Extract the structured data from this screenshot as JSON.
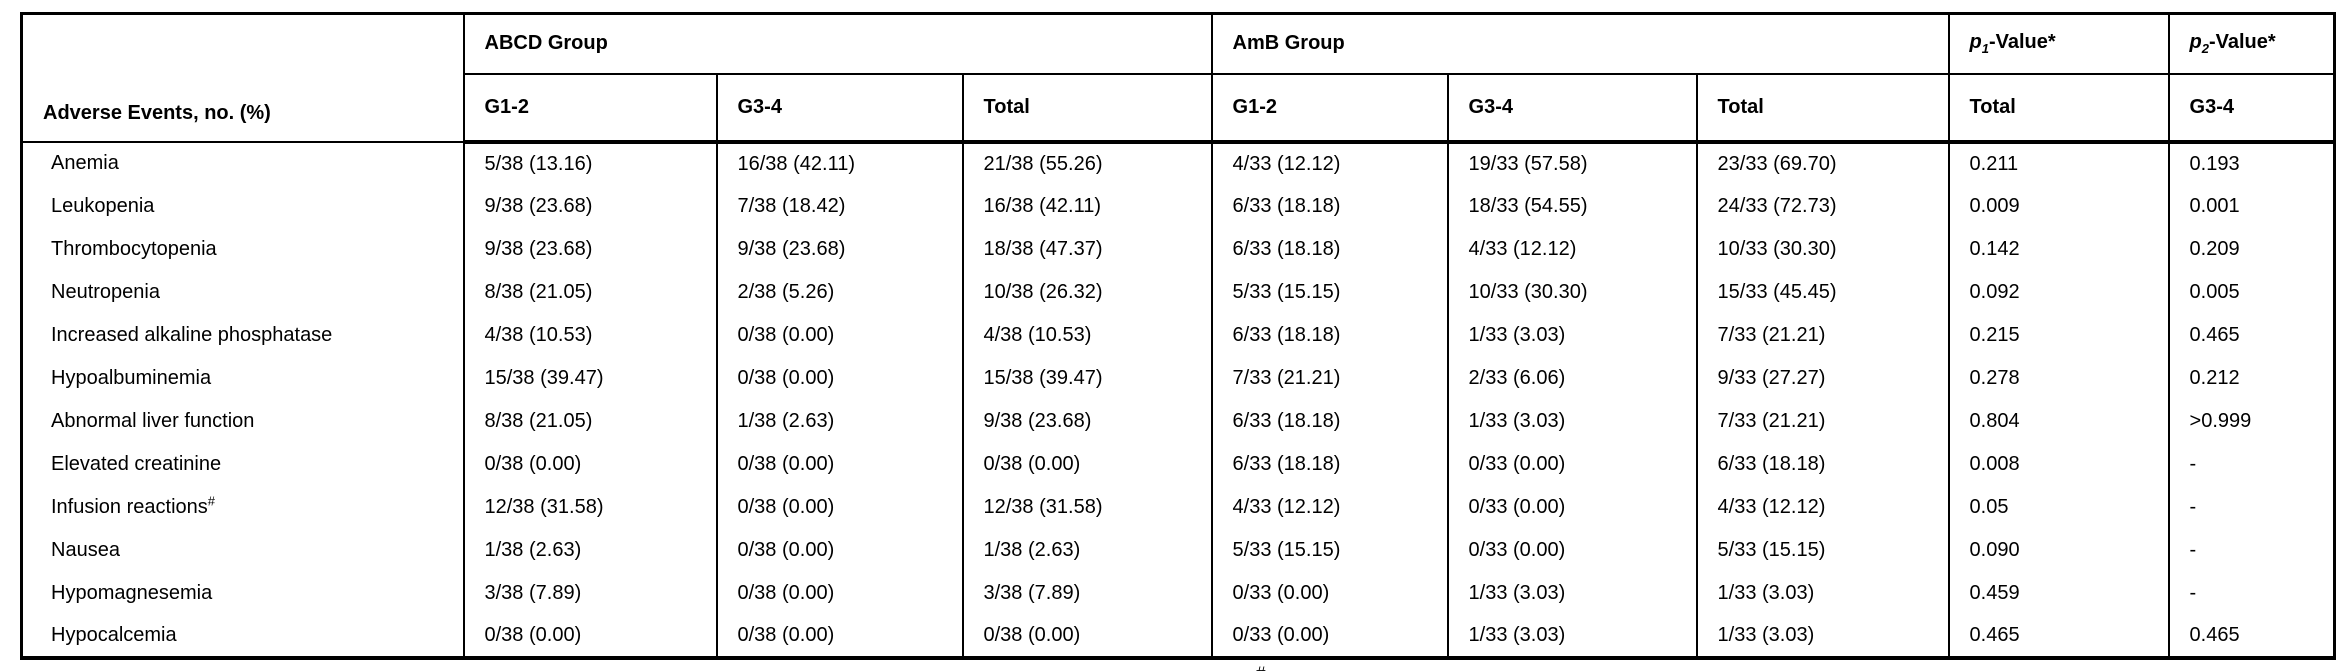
{
  "table": {
    "col1_header": "Adverse Events, no. (%)",
    "groups": [
      {
        "label": "ABCD Group",
        "sub": [
          "G1-2",
          "G3-4",
          "Total"
        ]
      },
      {
        "label": "AmB Group",
        "sub": [
          "G1-2",
          "G3-4",
          "Total"
        ]
      }
    ],
    "p_headers": [
      {
        "p": "p",
        "sub": "1",
        "suffix": "-Value*",
        "col_sub": "Total"
      },
      {
        "p": "p",
        "sub": "2",
        "suffix": "-Value*",
        "col_sub": "G3-4"
      }
    ],
    "rows": [
      {
        "event": "Anemia",
        "sup": "",
        "values": [
          "5/38 (13.16)",
          "16/38 (42.11)",
          "21/38 (55.26)",
          "4/33 (12.12)",
          "19/33 (57.58)",
          "23/33 (69.70)",
          "0.211",
          "0.193"
        ]
      },
      {
        "event": "Leukopenia",
        "sup": "",
        "values": [
          "9/38 (23.68)",
          "7/38 (18.42)",
          "16/38 (42.11)",
          "6/33 (18.18)",
          "18/33 (54.55)",
          "24/33 (72.73)",
          "0.009",
          "0.001"
        ]
      },
      {
        "event": "Thrombocytopenia",
        "sup": "",
        "values": [
          "9/38 (23.68)",
          "9/38 (23.68)",
          "18/38 (47.37)",
          "6/33 (18.18)",
          "4/33 (12.12)",
          "10/33 (30.30)",
          "0.142",
          "0.209"
        ]
      },
      {
        "event": "Neutropenia",
        "sup": "",
        "values": [
          "8/38 (21.05)",
          "2/38 (5.26)",
          "10/38 (26.32)",
          "5/33 (15.15)",
          "10/33 (30.30)",
          "15/33 (45.45)",
          "0.092",
          "0.005"
        ]
      },
      {
        "event": "Increased alkaline phosphatase",
        "sup": "",
        "values": [
          "4/38 (10.53)",
          "0/38 (0.00)",
          "4/38 (10.53)",
          "6/33 (18.18)",
          "1/33 (3.03)",
          "7/33 (21.21)",
          "0.215",
          "0.465"
        ]
      },
      {
        "event": "Hypoalbuminemia",
        "sup": "",
        "values": [
          "15/38 (39.47)",
          "0/38 (0.00)",
          "15/38 (39.47)",
          "7/33 (21.21)",
          "2/33 (6.06)",
          "9/33 (27.27)",
          "0.278",
          "0.212"
        ]
      },
      {
        "event": "Abnormal liver function",
        "sup": "",
        "values": [
          "8/38 (21.05)",
          "1/38 (2.63)",
          "9/38 (23.68)",
          "6/33 (18.18)",
          "1/33 (3.03)",
          "7/33 (21.21)",
          "0.804",
          ">0.999"
        ]
      },
      {
        "event": "Elevated creatinine",
        "sup": "",
        "values": [
          "0/38 (0.00)",
          "0/38 (0.00)",
          "0/38 (0.00)",
          "6/33 (18.18)",
          "0/33 (0.00)",
          "6/33 (18.18)",
          "0.008",
          "-"
        ]
      },
      {
        "event": "Infusion reactions",
        "sup": "#",
        "values": [
          "12/38 (31.58)",
          "0/38 (0.00)",
          "12/38 (31.58)",
          "4/33 (12.12)",
          "0/33 (0.00)",
          "4/33 (12.12)",
          "0.05",
          "-"
        ]
      },
      {
        "event": "Nausea",
        "sup": "",
        "values": [
          "1/38 (2.63)",
          "0/38 (0.00)",
          "1/38 (2.63)",
          "5/33 (15.15)",
          "0/33 (0.00)",
          "5/33 (15.15)",
          "0.090",
          "-"
        ]
      },
      {
        "event": "Hypomagnesemia",
        "sup": "",
        "values": [
          "3/38 (7.89)",
          "0/38 (0.00)",
          "3/38 (7.89)",
          "0/33 (0.00)",
          "1/33 (3.03)",
          "1/33 (3.03)",
          "0.459",
          "-"
        ]
      },
      {
        "event": "Hypocalcemia",
        "sup": "",
        "values": [
          "0/38 (0.00)",
          "0/38 (0.00)",
          "0/38 (0.00)",
          "0/33 (0.00)",
          "1/33 (3.03)",
          "1/33 (3.03)",
          "0.465",
          "0.465"
        ]
      }
    ]
  },
  "footnote_fragment": "#",
  "colors": {
    "border": "#000000",
    "text": "#000000",
    "background": "#ffffff"
  }
}
